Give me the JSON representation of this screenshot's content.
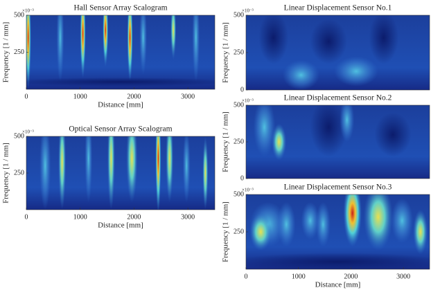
{
  "chart_data": [
    {
      "type": "heatmap",
      "title": "Hall Sensor Array Scalogram",
      "xlabel": "Distance [mm]",
      "ylabel": "Frequency [1 / mm]",
      "y_exponent": "×10⁻³",
      "xlim": [
        0,
        3500
      ],
      "ylim": [
        0,
        500
      ],
      "xticks": [
        0,
        1000,
        2000,
        3000
      ],
      "yticks": [
        250,
        500
      ]
    },
    {
      "type": "heatmap",
      "title": "Optical Sensor Array Scalogram",
      "xlabel": "Distance [mm]",
      "ylabel": "Frequency [1 / mm]",
      "y_exponent": "×10⁻³",
      "xlim": [
        0,
        3500
      ],
      "ylim": [
        0,
        500
      ],
      "xticks": [
        0,
        1000,
        2000,
        3000
      ],
      "yticks": [
        250,
        500
      ]
    },
    {
      "type": "heatmap",
      "title": "Linear Displacement Sensor No.1",
      "ylabel": "Frequency [1 / mm]",
      "y_exponent": "×10⁻³",
      "xlim": [
        0,
        3500
      ],
      "ylim": [
        0,
        500
      ],
      "yticks": [
        0,
        250,
        500
      ]
    },
    {
      "type": "heatmap",
      "title": "Linear Displacement Sensor No.2",
      "ylabel": "Frequency [1 / mm]",
      "y_exponent": "×10⁻³",
      "xlim": [
        0,
        3500
      ],
      "ylim": [
        0,
        500
      ],
      "yticks": [
        0,
        250,
        500
      ]
    },
    {
      "type": "heatmap",
      "title": "Linear Displacement Sensor No.3",
      "xlabel": "Distance [mm]",
      "ylabel": "Frequency [1 / mm]",
      "y_exponent": "×10⁻³",
      "xlim": [
        0,
        3500
      ],
      "ylim": [
        0,
        500
      ],
      "xticks": [
        0,
        1000,
        2000,
        3000
      ],
      "yticks": [
        250,
        500
      ]
    }
  ]
}
